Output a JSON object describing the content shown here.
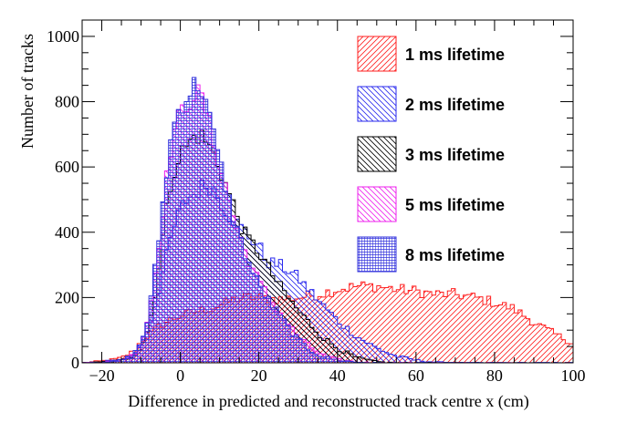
{
  "chart_data": {
    "type": "histogram",
    "xlabel": "Difference in predicted and reconstructed track centre x (cm)",
    "ylabel": "Number of tracks",
    "xlim": [
      -25,
      100
    ],
    "ylim": [
      0,
      1050
    ],
    "bin_width": 1,
    "x_ticks": [
      -20,
      0,
      20,
      40,
      60,
      80,
      100
    ],
    "y_ticks": [
      0,
      200,
      400,
      600,
      800,
      1000
    ],
    "legend_position": "top-right",
    "series": [
      {
        "name": "1 ms lifetime",
        "color": "#ff2020",
        "hatch": "forward",
        "shape": [
          [
            -25,
            0
          ],
          [
            -22,
            3
          ],
          [
            -18,
            8
          ],
          [
            -15,
            15
          ],
          [
            -12,
            35
          ],
          [
            -10,
            65
          ],
          [
            -8,
            85
          ],
          [
            -5,
            115
          ],
          [
            -2,
            135
          ],
          [
            0,
            145
          ],
          [
            5,
            160
          ],
          [
            10,
            175
          ],
          [
            15,
            200
          ],
          [
            20,
            200
          ],
          [
            25,
            195
          ],
          [
            30,
            200
          ],
          [
            35,
            210
          ],
          [
            40,
            225
          ],
          [
            45,
            235
          ],
          [
            50,
            235
          ],
          [
            55,
            225
          ],
          [
            60,
            220
          ],
          [
            65,
            210
          ],
          [
            70,
            210
          ],
          [
            75,
            200
          ],
          [
            80,
            185
          ],
          [
            85,
            165
          ],
          [
            90,
            125
          ],
          [
            95,
            90
          ],
          [
            100,
            60
          ]
        ]
      },
      {
        "name": "2 ms lifetime",
        "color": "#2a2aee",
        "hatch": "backward",
        "shape": [
          [
            -25,
            0
          ],
          [
            -20,
            3
          ],
          [
            -15,
            10
          ],
          [
            -12,
            25
          ],
          [
            -10,
            60
          ],
          [
            -8,
            110
          ],
          [
            -6,
            200
          ],
          [
            -4,
            300
          ],
          [
            -2,
            400
          ],
          [
            0,
            470
          ],
          [
            2,
            505
          ],
          [
            4,
            520
          ],
          [
            6,
            545
          ],
          [
            8,
            540
          ],
          [
            10,
            500
          ],
          [
            12,
            460
          ],
          [
            15,
            420
          ],
          [
            18,
            380
          ],
          [
            20,
            360
          ],
          [
            22,
            310
          ],
          [
            25,
            300
          ],
          [
            28,
            280
          ],
          [
            30,
            260
          ],
          [
            33,
            220
          ],
          [
            36,
            180
          ],
          [
            40,
            130
          ],
          [
            45,
            80
          ],
          [
            50,
            45
          ],
          [
            55,
            20
          ],
          [
            60,
            8
          ],
          [
            65,
            2
          ],
          [
            70,
            0
          ]
        ]
      },
      {
        "name": "3 ms lifetime",
        "color": "#000000",
        "hatch": "backward",
        "shape": [
          [
            -25,
            0
          ],
          [
            -20,
            2
          ],
          [
            -15,
            8
          ],
          [
            -12,
            20
          ],
          [
            -10,
            50
          ],
          [
            -8,
            110
          ],
          [
            -6,
            250
          ],
          [
            -4,
            430
          ],
          [
            -2,
            580
          ],
          [
            0,
            640
          ],
          [
            2,
            670
          ],
          [
            4,
            700
          ],
          [
            6,
            690
          ],
          [
            8,
            650
          ],
          [
            10,
            600
          ],
          [
            12,
            530
          ],
          [
            14,
            470
          ],
          [
            16,
            400
          ],
          [
            18,
            370
          ],
          [
            20,
            340
          ],
          [
            22,
            300
          ],
          [
            25,
            240
          ],
          [
            28,
            190
          ],
          [
            30,
            160
          ],
          [
            33,
            120
          ],
          [
            36,
            80
          ],
          [
            40,
            45
          ],
          [
            45,
            15
          ],
          [
            50,
            3
          ],
          [
            55,
            0
          ]
        ]
      },
      {
        "name": "5 ms lifetime",
        "color": "#ee22ee",
        "hatch": "backward",
        "shape": [
          [
            -25,
            0
          ],
          [
            -20,
            2
          ],
          [
            -15,
            8
          ],
          [
            -12,
            25
          ],
          [
            -10,
            60
          ],
          [
            -8,
            150
          ],
          [
            -6,
            320
          ],
          [
            -4,
            520
          ],
          [
            -2,
            700
          ],
          [
            0,
            760
          ],
          [
            2,
            800
          ],
          [
            4,
            830
          ],
          [
            6,
            800
          ],
          [
            8,
            700
          ],
          [
            10,
            610
          ],
          [
            12,
            520
          ],
          [
            14,
            430
          ],
          [
            16,
            360
          ],
          [
            18,
            300
          ],
          [
            20,
            250
          ],
          [
            22,
            210
          ],
          [
            25,
            160
          ],
          [
            28,
            110
          ],
          [
            30,
            80
          ],
          [
            33,
            50
          ],
          [
            36,
            25
          ],
          [
            40,
            10
          ],
          [
            45,
            2
          ],
          [
            50,
            0
          ]
        ]
      },
      {
        "name": "8 ms lifetime",
        "color": "#3232dd",
        "hatch": "cross",
        "shape": [
          [
            -25,
            0
          ],
          [
            -20,
            2
          ],
          [
            -15,
            8
          ],
          [
            -12,
            25
          ],
          [
            -10,
            60
          ],
          [
            -8,
            150
          ],
          [
            -6,
            330
          ],
          [
            -4,
            540
          ],
          [
            -2,
            720
          ],
          [
            0,
            790
          ],
          [
            2,
            820
          ],
          [
            4,
            860
          ],
          [
            6,
            830
          ],
          [
            8,
            720
          ],
          [
            10,
            620
          ],
          [
            12,
            520
          ],
          [
            14,
            430
          ],
          [
            16,
            350
          ],
          [
            18,
            290
          ],
          [
            20,
            240
          ],
          [
            22,
            200
          ],
          [
            25,
            150
          ],
          [
            28,
            100
          ],
          [
            30,
            70
          ],
          [
            33,
            40
          ],
          [
            36,
            20
          ],
          [
            40,
            8
          ],
          [
            45,
            2
          ],
          [
            50,
            0
          ]
        ]
      }
    ]
  }
}
